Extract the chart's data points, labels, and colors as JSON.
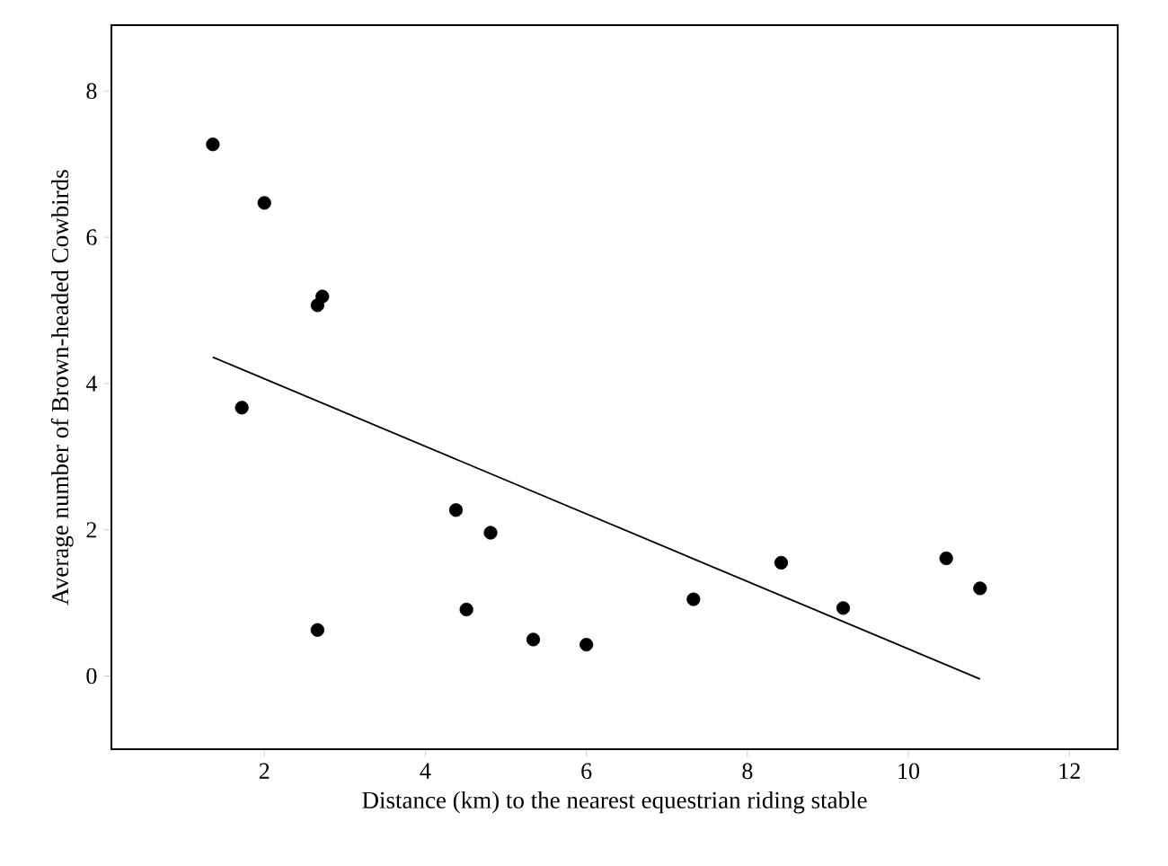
{
  "chart_data": {
    "type": "scatter",
    "xlabel": "Distance (km) to the nearest equestrian riding stable",
    "ylabel": "Average number of Brown-headed Cowbirds",
    "xlim": [
      0.1,
      12.6
    ],
    "ylim": [
      -1,
      8.9
    ],
    "xticks": [
      2,
      4,
      6,
      8,
      10,
      12
    ],
    "yticks": [
      0,
      2,
      4,
      6,
      8
    ],
    "grid": false,
    "series": [
      {
        "color": "#000000",
        "x": [
          1.36,
          2.0,
          2.72,
          2.66,
          1.72,
          2.66,
          4.38,
          4.81,
          4.51,
          5.34,
          6.0,
          7.33,
          8.42,
          9.19,
          10.47,
          10.89
        ],
        "values": [
          7.27,
          6.47,
          5.19,
          5.07,
          3.67,
          0.63,
          2.27,
          1.96,
          0.91,
          0.5,
          0.43,
          1.05,
          1.55,
          0.93,
          1.61,
          1.2
        ]
      },
      {
        "type": "line",
        "color": "#000000",
        "x": [
          1.36,
          10.89
        ],
        "values": [
          4.36,
          -0.04
        ]
      }
    ]
  }
}
